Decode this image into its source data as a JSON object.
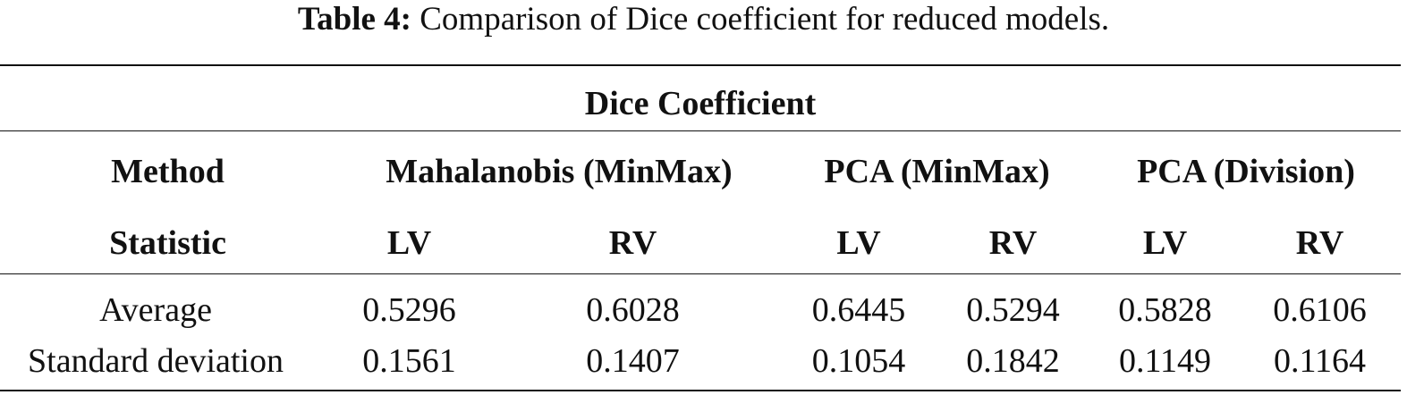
{
  "caption": {
    "label": "Table 4:",
    "text": "Comparison of Dice coefficient for reduced models."
  },
  "table": {
    "super_header": "Dice Coefficient",
    "method_header": "Method",
    "methods": [
      "Mahalanobis (MinMax)",
      "PCA (MinMax)",
      "PCA (Division)"
    ],
    "statistic_header": "Statistic",
    "sub_headers": [
      "LV",
      "RV",
      "LV",
      "RV",
      "LV",
      "RV"
    ],
    "rows": [
      {
        "label": "Average",
        "values": [
          "0.5296",
          "0.6028",
          "0.6445",
          "0.5294",
          "0.5828",
          "0.6106"
        ]
      },
      {
        "label": "Standard deviation",
        "values": [
          "0.1561",
          "0.1407",
          "0.1054",
          "0.1842",
          "0.1149",
          "0.1164"
        ]
      }
    ]
  }
}
